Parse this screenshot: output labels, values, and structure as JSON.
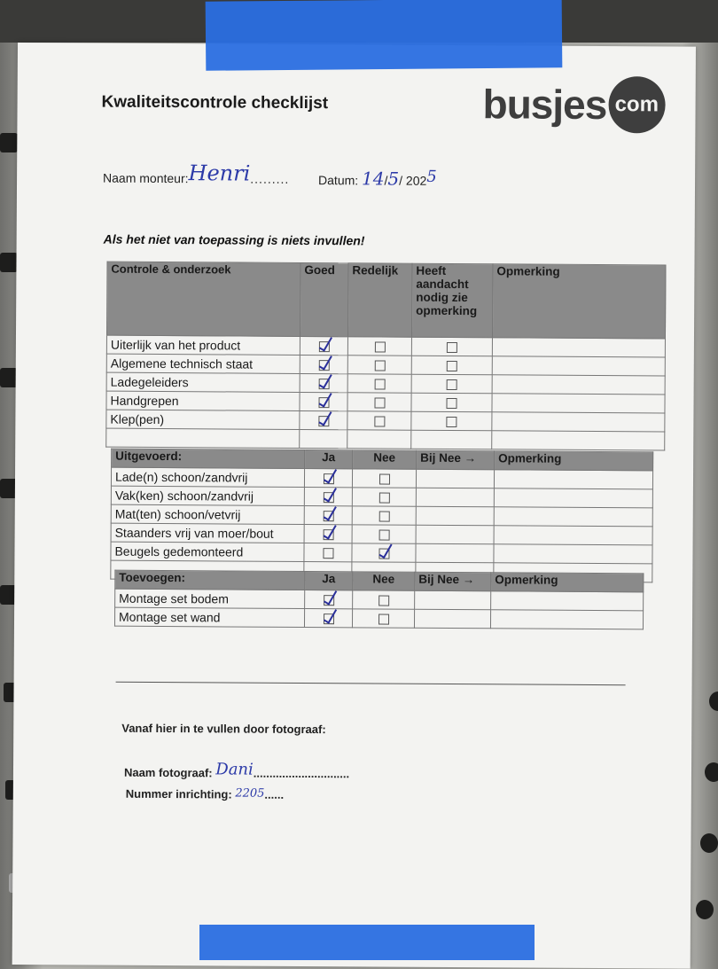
{
  "form": {
    "title": "Kwaliteitscontrole checklijst",
    "logo": {
      "text": "busjes",
      "badge": "com"
    },
    "mechanic_label": "Naam monteur:",
    "mechanic_value": "Henri",
    "date_label": "Datum:",
    "date_day": "14",
    "date_month": "5",
    "date_year_prefix": "202",
    "date_year_suffix": "5",
    "note": "Als het niet van toepassing is niets invullen!"
  },
  "inspection": {
    "headers": [
      "Controle & onderzoek",
      "Goed",
      "Redelijk",
      "Heeft aandacht nodig zie opmerking",
      "Opmerking"
    ],
    "rows": [
      {
        "label": "Uiterlijk van het product",
        "checks": [
          true,
          false,
          false
        ]
      },
      {
        "label": "Algemene technisch staat",
        "checks": [
          true,
          false,
          false
        ]
      },
      {
        "label": "Ladegeleiders",
        "checks": [
          true,
          false,
          false
        ]
      },
      {
        "label": "Handgrepen",
        "checks": [
          true,
          false,
          false
        ]
      },
      {
        "label": "Klep(pen)",
        "checks": [
          true,
          false,
          false
        ]
      }
    ]
  },
  "performed": {
    "headers": [
      "Uitgevoerd:",
      "Ja",
      "Nee",
      "Bij Nee →",
      "Opmerking"
    ],
    "rows": [
      {
        "label": "Lade(n) schoon/zandvrij",
        "checks": [
          true,
          false
        ]
      },
      {
        "label": "Vak(ken) schoon/zandvrij",
        "checks": [
          true,
          false
        ]
      },
      {
        "label": "Mat(ten) schoon/vetvrij",
        "checks": [
          true,
          false
        ]
      },
      {
        "label": "Staanders vrij van moer/bout",
        "checks": [
          true,
          false
        ]
      },
      {
        "label": "Beugels gedemonteerd",
        "checks": [
          false,
          true
        ]
      }
    ]
  },
  "added": {
    "headers": [
      "Toevoegen:",
      "Ja",
      "Nee",
      "Bij Nee →",
      "Opmerking"
    ],
    "rows": [
      {
        "label": "Montage set bodem",
        "checks": [
          true,
          false
        ]
      },
      {
        "label": "Montage set wand",
        "checks": [
          true,
          false
        ]
      }
    ]
  },
  "photographer": {
    "heading": "Vanaf hier in te vullen door fotograaf:",
    "name_label": "Naam fotograaf:",
    "name_value": "Dani",
    "number_label": "Nummer inrichting:",
    "number_value": "2205"
  },
  "colors": {
    "tape": "#2a6ee0",
    "ink": "#2c3aa8",
    "header_fill": "#8a8a8a"
  }
}
